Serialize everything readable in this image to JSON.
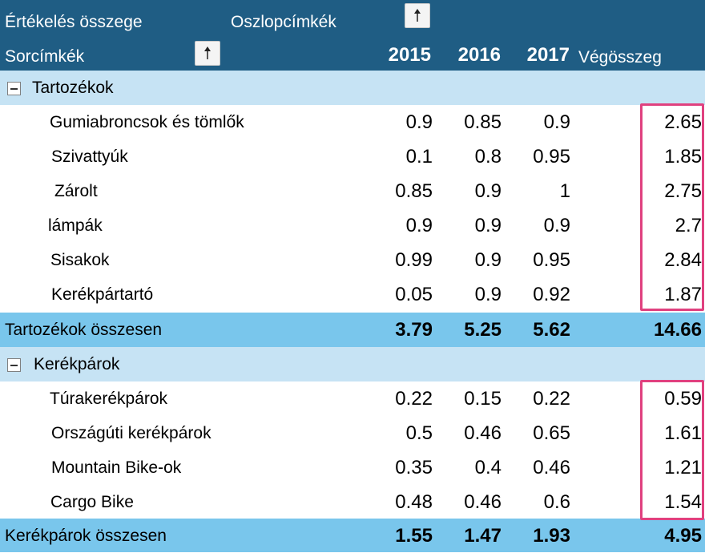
{
  "header": {
    "value_label": "Értékelés összege",
    "column_labels": "Oszlopcímkék",
    "row_labels": "Sorcímkék",
    "years": [
      "2015",
      "2016",
      "2017"
    ],
    "grand_total": "Végösszeg"
  },
  "groups": [
    {
      "name": "Tartozékok",
      "items": [
        {
          "label": "Gumiabroncsok és tömlők",
          "v2015": "0.9",
          "v2016": "0.85",
          "v2017": "0.9",
          "total": "2.65"
        },
        {
          "label": "Szivattyúk",
          "v2015": "0.1",
          "v2016": "0.8",
          "v2017": "0.95",
          "total": "1.85"
        },
        {
          "label": "Zárolt",
          "v2015": "0.85",
          "v2016": "0.9",
          "v2017": "1",
          "total": "2.75"
        },
        {
          "label": "lámpák",
          "v2015": "0.9",
          "v2016": "0.9",
          "v2017": "0.9",
          "total": "2.7"
        },
        {
          "label": "Sisakok",
          "v2015": "0.99",
          "v2016": "0.9",
          "v2017": "0.95",
          "total": "2.84"
        },
        {
          "label": "Kerékpártartó",
          "v2015": "0.05",
          "v2016": "0.9",
          "v2017": "0.92",
          "total": "1.87"
        }
      ],
      "subtotal": {
        "label": "Tartozékok összesen",
        "v2015": "3.79",
        "v2016": "5.25",
        "v2017": "5.62",
        "total": "14.66"
      }
    },
    {
      "name": "Kerékpárok",
      "items": [
        {
          "label": "Túrakerékpárok",
          "v2015": "0.22",
          "v2016": "0.15",
          "v2017": "0.22",
          "total": "0.59"
        },
        {
          "label": "Országúti kerékpárok",
          "v2015": "0.5",
          "v2016": "0.46",
          "v2017": "0.65",
          "total": "1.61"
        },
        {
          "label": "Mountain Bike-ok",
          "v2015": "0.35",
          "v2016": "0.4",
          "v2017": "0.46",
          "total": "1.21"
        },
        {
          "label": "Cargo Bike",
          "v2015": "0.48",
          "v2016": "0.46",
          "v2017": "0.6",
          "total": "1.54"
        }
      ],
      "subtotal": {
        "label": "Kerékpárok összesen",
        "v2015": "1.55",
        "v2016": "1.47",
        "v2017": "1.93",
        "total": "4.95"
      }
    }
  ],
  "colors": {
    "header_bg": "#1f5d84",
    "group_bg": "#c6e3f4",
    "total_bg": "#79c6ec",
    "highlight": "#e0417f"
  }
}
